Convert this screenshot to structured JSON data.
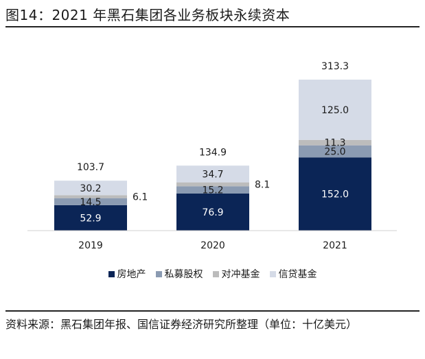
{
  "title": "图14：2021 年黑石集团各业务板块永续资本",
  "source": "资料来源：黑石集团年报、国信证券经济研究所整理（单位：十亿美元）",
  "chart_data": {
    "type": "bar",
    "stacked": true,
    "categories": [
      "2019",
      "2020",
      "2021"
    ],
    "series": [
      {
        "name": "房地产",
        "values": [
          52.9,
          76.9,
          152.0
        ],
        "labels": [
          "52.9",
          "76.9",
          "152.0"
        ],
        "color": "#0b2556"
      },
      {
        "name": "私募股权",
        "values": [
          14.5,
          15.2,
          25.0
        ],
        "labels": [
          "14.5",
          "15.2",
          "25.0"
        ],
        "color": "#8b9bb2"
      },
      {
        "name": "对冲基金",
        "values": [
          6.1,
          8.1,
          11.3
        ],
        "labels": [
          "6.1",
          "8.1",
          "11.3"
        ],
        "color": "#bcbcbc"
      },
      {
        "name": "信贷基金",
        "values": [
          30.2,
          34.7,
          125.0
        ],
        "labels": [
          "30.2",
          "34.7",
          "125.0"
        ],
        "color": "#d5dbe7"
      }
    ],
    "totals": [
      "103.7",
      "134.9",
      "313.3"
    ],
    "legend_position": "bottom",
    "grid": false
  }
}
